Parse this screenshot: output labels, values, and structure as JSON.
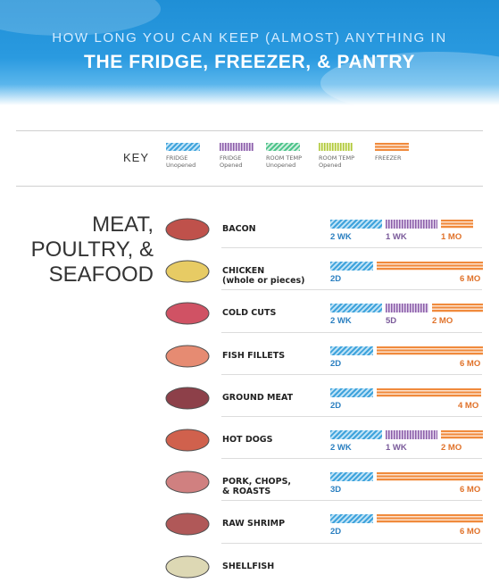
{
  "header": {
    "title_top": "HOW LONG YOU CAN KEEP (ALMOST) ANYTHING IN",
    "title_main": "THE FRIDGE, FREEZER, & PANTRY"
  },
  "key": {
    "label": "KEY",
    "items": [
      {
        "label": "FRIDGE\nUnopened",
        "color": "#3ea3dc"
      },
      {
        "label": "FRIDGE\nOpened",
        "color": "#8b5ea8"
      },
      {
        "label": "ROOM TEMP\nUnopened",
        "color": "#4cc38a"
      },
      {
        "label": "ROOM TEMP\nOpened",
        "color": "#b0c83a"
      },
      {
        "label": "FREEZER",
        "color": "#f08a3c"
      }
    ]
  },
  "section": {
    "title": "MEAT,\nPOULTRY, &\nSEAFOOD"
  },
  "chart_data": {
    "type": "bar",
    "title": "THE FRIDGE, FREEZER, & PANTRY",
    "units": "days",
    "categories": [
      "BACON",
      "CHICKEN (whole or pieces)",
      "COLD CUTS",
      "FISH FILLETS",
      "GROUND MEAT",
      "HOT DOGS",
      "PORK, CHOPS, & ROASTS",
      "RAW SHRIMP",
      "SHELLFISH"
    ],
    "series": [
      {
        "name": "FRIDGE Unopened",
        "color": "#3ea3dc",
        "values": [
          14,
          2,
          14,
          2,
          2,
          14,
          3,
          2,
          null
        ],
        "labels": [
          "2 WK",
          "2D",
          "2 WK",
          "2D",
          "2D",
          "2 WK",
          "3D",
          "2D",
          ""
        ]
      },
      {
        "name": "FRIDGE Opened",
        "color": "#8b5ea8",
        "values": [
          7,
          null,
          5,
          null,
          null,
          7,
          null,
          null,
          null
        ],
        "labels": [
          "1 WK",
          "",
          "5D",
          "",
          "",
          "1 WK",
          "",
          "",
          ""
        ]
      },
      {
        "name": "FREEZER",
        "color": "#f08a3c",
        "values": [
          30,
          180,
          60,
          180,
          120,
          60,
          180,
          180,
          null
        ],
        "labels": [
          "1 MO",
          "6 MO",
          "2 MO",
          "6 MO",
          "4 MO",
          "2 MO",
          "6 MO",
          "6 MO",
          ""
        ]
      }
    ]
  }
}
